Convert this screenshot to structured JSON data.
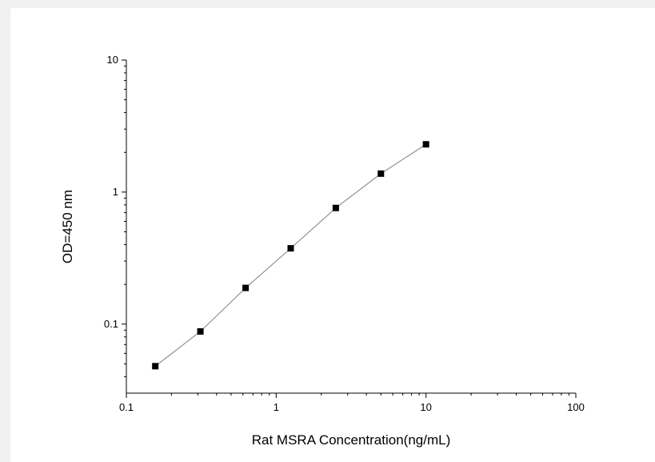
{
  "chart_data": {
    "type": "scatter",
    "title": "",
    "xlabel": "Rat MSRA Concentration(ng/mL)",
    "ylabel": "OD=450 nm",
    "xscale": "log",
    "yscale": "log",
    "xlim": [
      0.1,
      100
    ],
    "ylim": [
      0.03,
      10
    ],
    "x_ticks": [
      {
        "value": 0.1,
        "label": "0.1"
      },
      {
        "value": 1,
        "label": "1"
      },
      {
        "value": 10,
        "label": "10"
      },
      {
        "value": 100,
        "label": "100"
      }
    ],
    "y_ticks": [
      {
        "value": 0.1,
        "label": "0.1"
      },
      {
        "value": 1,
        "label": "1"
      },
      {
        "value": 10,
        "label": "10"
      }
    ],
    "grid": false,
    "legend": "none",
    "series": [
      {
        "x": [
          0.156,
          0.312,
          0.625,
          1.25,
          2.5,
          5,
          10
        ],
        "y": [
          0.048,
          0.088,
          0.188,
          0.375,
          0.758,
          1.38,
          2.3
        ],
        "marker": "square",
        "marker_color": "#000000",
        "line_color": "#808080"
      }
    ]
  }
}
